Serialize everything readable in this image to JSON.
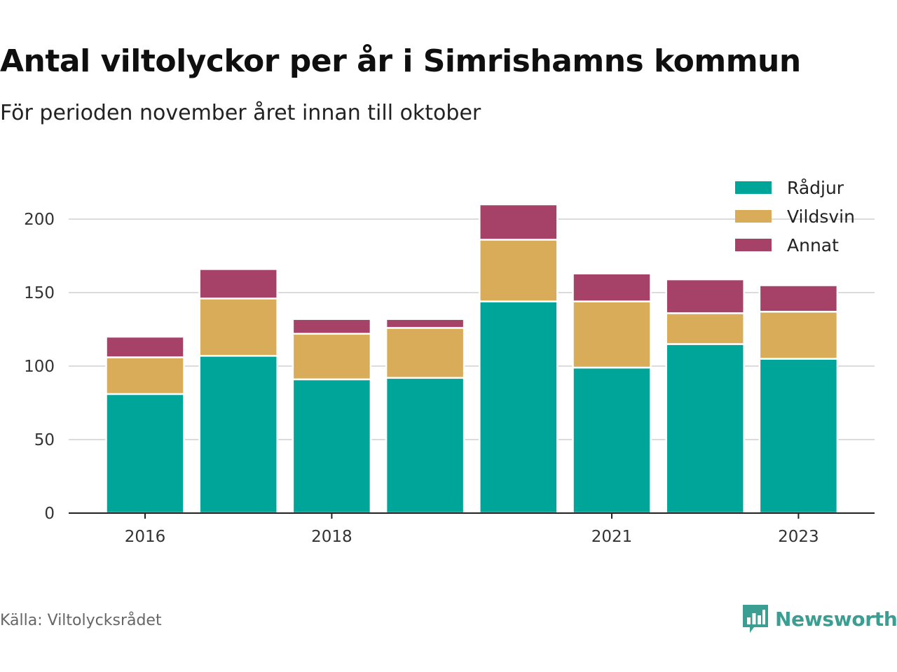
{
  "title": "Antal viltolyckor per år i Simrishamns kommun",
  "subtitle": "För perioden november året innan till oktober",
  "source": "Källa: Viltolycksrådet",
  "brand": {
    "name": "Newsworthy",
    "color": "#3a9e93",
    "icon": "bar-chart-speech-bubble-icon"
  },
  "chart_data": {
    "type": "bar",
    "stacked": true,
    "categories": [
      "2016",
      "2017",
      "2018",
      "2019",
      "2020",
      "2021",
      "2022",
      "2023"
    ],
    "x_tick_labels": [
      "2016",
      "",
      "2018",
      "",
      "",
      "2021",
      "",
      "2023"
    ],
    "series": [
      {
        "name": "Rådjur",
        "color": "#00a59a",
        "values": [
          81,
          107,
          91,
          92,
          144,
          99,
          115,
          105
        ]
      },
      {
        "name": "Vildsvin",
        "color": "#d9ac59",
        "values": [
          25,
          39,
          31,
          34,
          42,
          45,
          21,
          32
        ]
      },
      {
        "name": "Annat",
        "color": "#a64168",
        "values": [
          14,
          20,
          10,
          6,
          24,
          19,
          23,
          18
        ]
      }
    ],
    "ylim": [
      0,
      220
    ],
    "y_ticks": [
      0,
      50,
      100,
      150,
      200
    ],
    "grid": true,
    "legend": "top-right",
    "xlabel": "",
    "ylabel": ""
  }
}
